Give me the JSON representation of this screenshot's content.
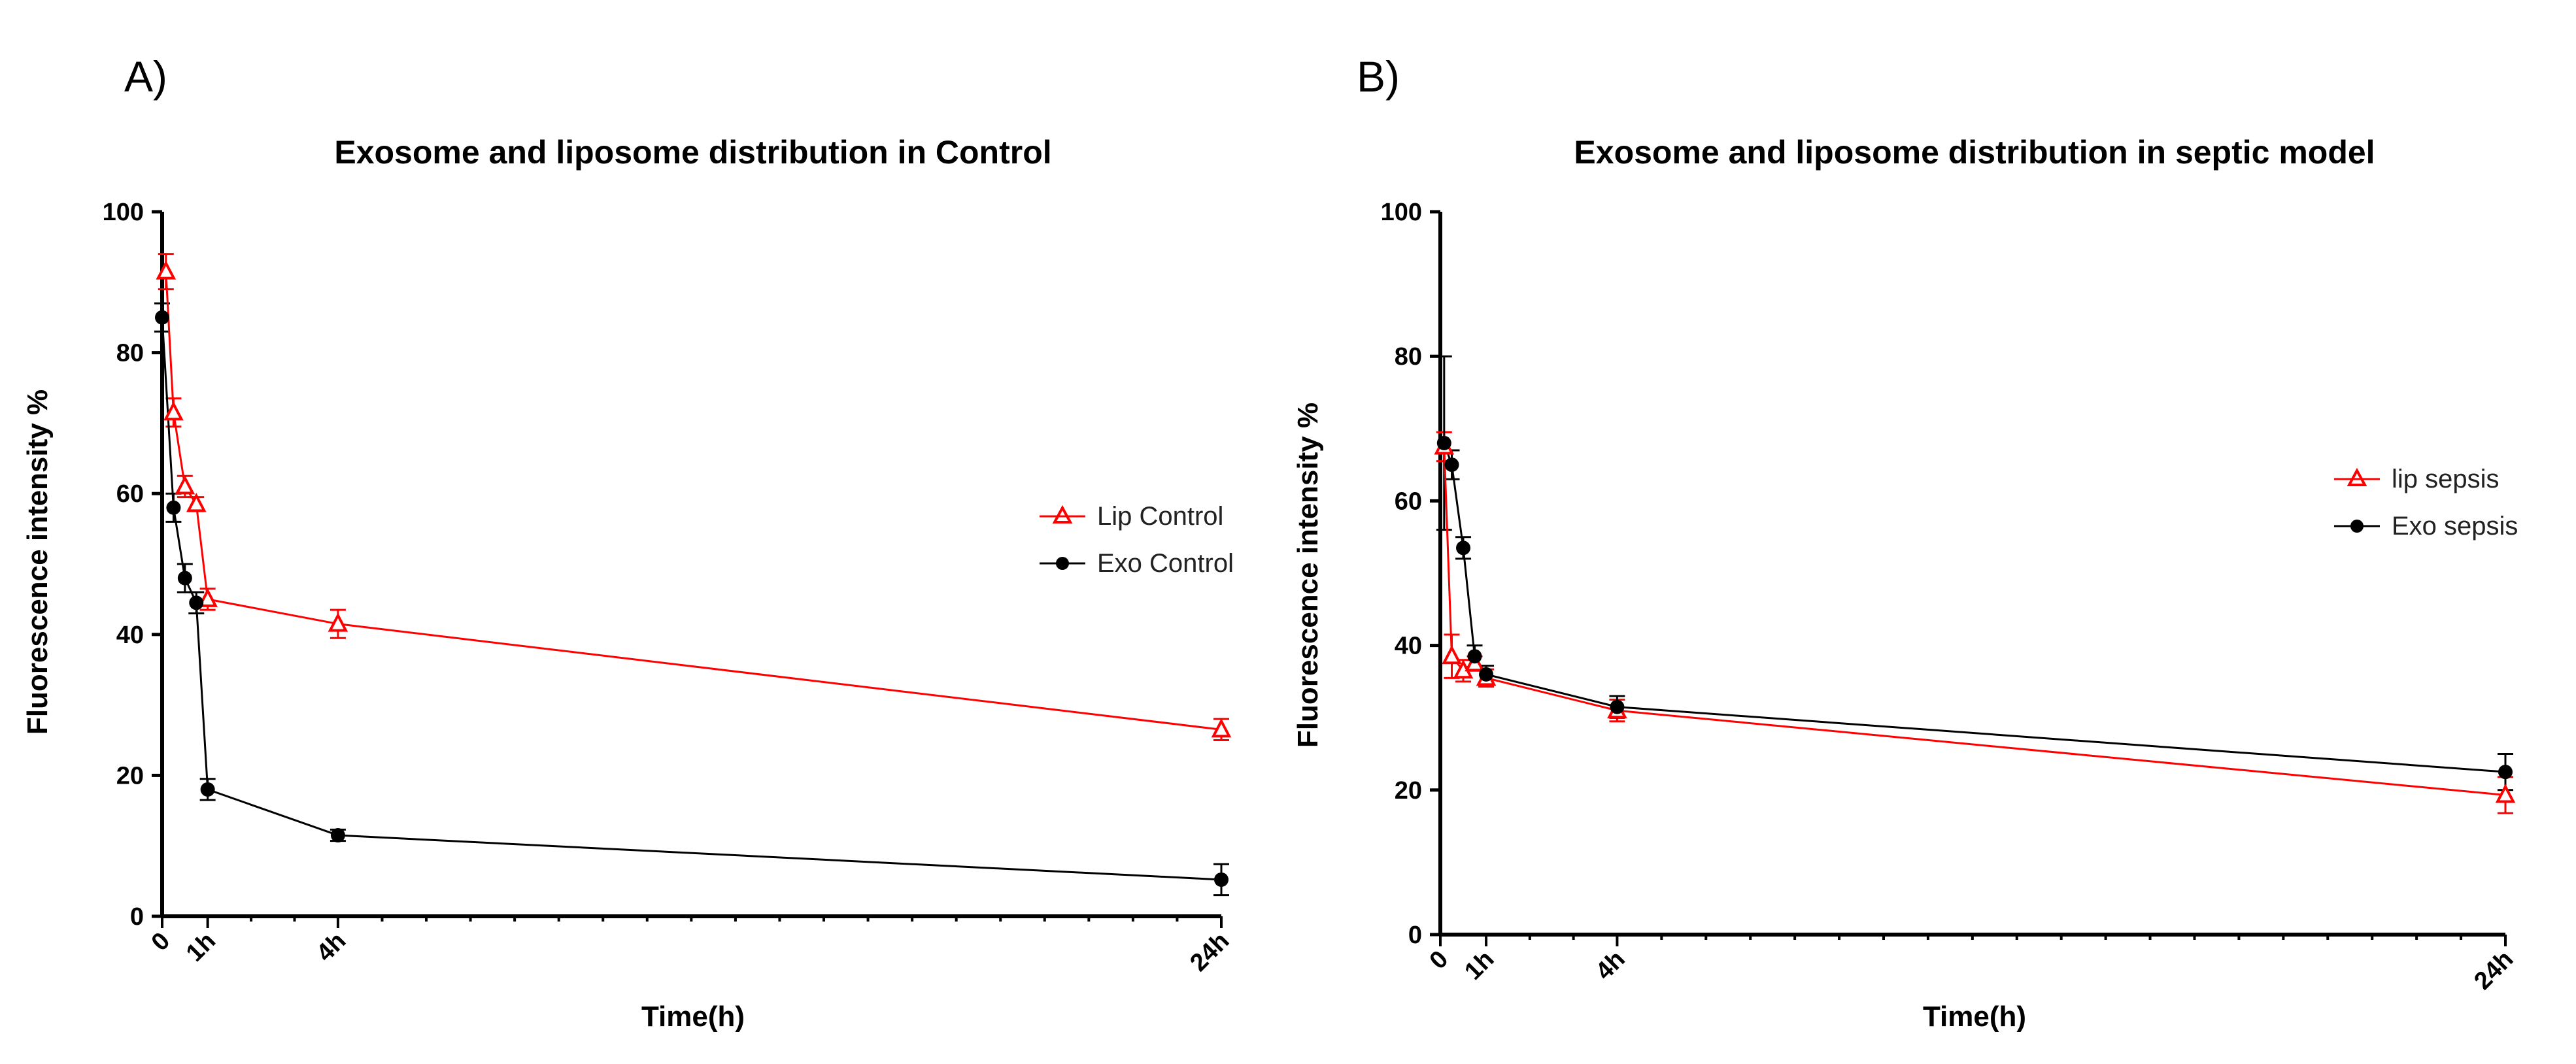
{
  "colors": {
    "lip": "#ff0000",
    "exo": "#000000",
    "axis": "#000000"
  },
  "chart_data": [
    {
      "panel": "A)",
      "type": "line",
      "title": "Exosome and liposome distribution in Control",
      "xlabel": "Time(h)",
      "ylabel": "Fluorescence intensity %",
      "ylim": [
        0,
        100
      ],
      "yticks": [
        0,
        20,
        40,
        60,
        80,
        100
      ],
      "xlim": [
        0,
        24
      ],
      "xtick_labels": [
        {
          "x": 0,
          "label": "0"
        },
        {
          "x": 1,
          "label": "1h"
        },
        {
          "x": 4,
          "label": "4h"
        },
        {
          "x": 24,
          "label": "24h"
        }
      ],
      "legend_position": "right-middle",
      "series": [
        {
          "name": "Lip Control",
          "color": "#ff0000",
          "marker": "triangle-open",
          "points": [
            {
              "x": 0.083,
              "y": 91.5,
              "err": 2.5
            },
            {
              "x": 0.25,
              "y": 71.5,
              "err": 2.0
            },
            {
              "x": 0.5,
              "y": 61.0,
              "err": 1.5
            },
            {
              "x": 0.75,
              "y": 58.5,
              "err": 1.0
            },
            {
              "x": 1.0,
              "y": 45.0,
              "err": 1.5
            },
            {
              "x": 4.0,
              "y": 41.5,
              "err": 2.0
            },
            {
              "x": 24.0,
              "y": 26.5,
              "err": 1.5
            }
          ]
        },
        {
          "name": "Exo Control",
          "color": "#000000",
          "marker": "circle",
          "points": [
            {
              "x": 0.0,
              "y": 85.0,
              "err": 2.0
            },
            {
              "x": 0.25,
              "y": 58.0,
              "err": 2.0
            },
            {
              "x": 0.5,
              "y": 48.0,
              "err": 2.0
            },
            {
              "x": 0.75,
              "y": 44.5,
              "err": 1.5
            },
            {
              "x": 1.0,
              "y": 18.0,
              "err": 1.5
            },
            {
              "x": 4.0,
              "y": 11.5,
              "err": 0.8
            },
            {
              "x": 24.0,
              "y": 5.2,
              "err": 2.2
            }
          ]
        }
      ]
    },
    {
      "panel": "B)",
      "type": "line",
      "title": "Exosome and liposome distribution in septic model",
      "xlabel": "Time(h)",
      "ylabel": "Fluorescence intensity %",
      "ylim": [
        0,
        100
      ],
      "yticks": [
        0,
        20,
        40,
        60,
        80,
        100
      ],
      "xlim": [
        0,
        24
      ],
      "xtick_labels": [
        {
          "x": 0,
          "label": "0"
        },
        {
          "x": 1,
          "label": "1h"
        },
        {
          "x": 4,
          "label": "4h"
        },
        {
          "x": 24,
          "label": "24h"
        }
      ],
      "legend_position": "right-middle",
      "series": [
        {
          "name": "lip sepsis",
          "color": "#ff0000",
          "marker": "triangle-open",
          "points": [
            {
              "x": 0.083,
              "y": 67.5,
              "err": 2.0
            },
            {
              "x": 0.25,
              "y": 38.5,
              "err": 3.0
            },
            {
              "x": 0.5,
              "y": 36.5,
              "err": 1.5
            },
            {
              "x": 0.75,
              "y": 37.5,
              "err": 1.0
            },
            {
              "x": 1.0,
              "y": 35.5,
              "err": 1.2
            },
            {
              "x": 4.0,
              "y": 31.0,
              "err": 1.5
            },
            {
              "x": 24.0,
              "y": 19.3,
              "err": 2.5
            }
          ]
        },
        {
          "name": "Exo sepsis",
          "color": "#000000",
          "marker": "circle",
          "points": [
            {
              "x": 0.083,
              "y": 68.0,
              "err": 12.0
            },
            {
              "x": 0.25,
              "y": 65.0,
              "err": 2.0
            },
            {
              "x": 0.5,
              "y": 53.5,
              "err": 1.5
            },
            {
              "x": 0.75,
              "y": 38.5,
              "err": 1.5
            },
            {
              "x": 1.0,
              "y": 36.0,
              "err": 1.2
            },
            {
              "x": 4.0,
              "y": 31.5,
              "err": 1.5
            },
            {
              "x": 24.0,
              "y": 22.5,
              "err": 2.5
            }
          ]
        }
      ]
    }
  ]
}
